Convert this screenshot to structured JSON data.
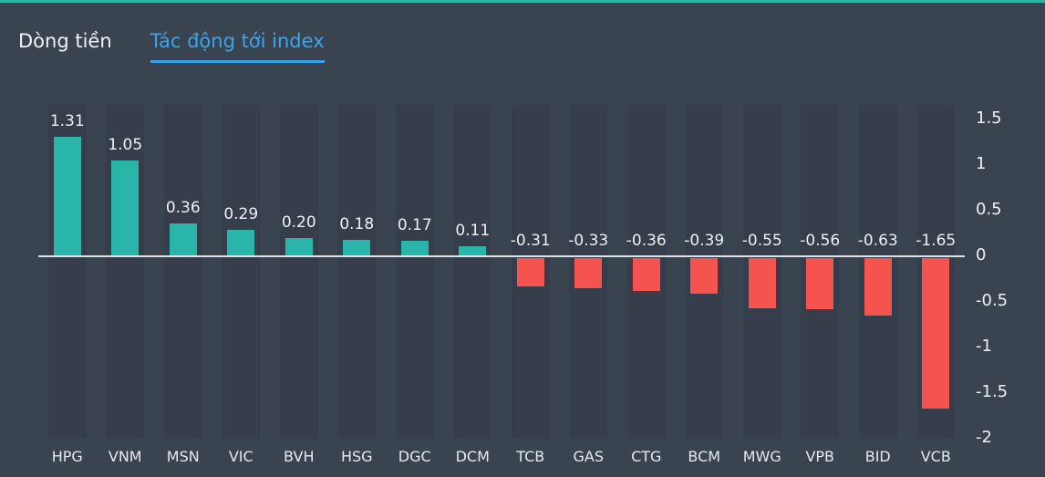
{
  "tabs": [
    {
      "label": "Dòng tiền",
      "active": false
    },
    {
      "label": "Tác động tới index",
      "active": true
    }
  ],
  "colors": {
    "background": "#3a4450",
    "band": "#353e4a",
    "positive_bar": "#29b5a8",
    "negative_bar": "#f4534e",
    "active_tab": "#38a6ec",
    "top_border": "#2db5a4",
    "zero_line": "#dfe3e8",
    "text": "#eef1f4"
  },
  "chart_data": {
    "type": "bar",
    "title": "",
    "xlabel": "",
    "ylabel": "",
    "categories": [
      "HPG",
      "VNM",
      "MSN",
      "VIC",
      "BVH",
      "HSG",
      "DGC",
      "DCM",
      "TCB",
      "GAS",
      "CTG",
      "BCM",
      "MWG",
      "VPB",
      "BID",
      "VCB"
    ],
    "values": [
      1.31,
      1.05,
      0.36,
      0.29,
      0.2,
      0.18,
      0.17,
      0.11,
      -0.31,
      -0.33,
      -0.36,
      -0.39,
      -0.55,
      -0.56,
      -0.63,
      -1.65
    ],
    "ylim": [
      -2,
      1.5
    ],
    "yticks": [
      1.5,
      1,
      0.5,
      0,
      -0.5,
      -1,
      -1.5,
      -2
    ],
    "grid": "column-bands",
    "legend_position": "none",
    "value_labels": "two-decimals",
    "yaxis_position": "right"
  }
}
